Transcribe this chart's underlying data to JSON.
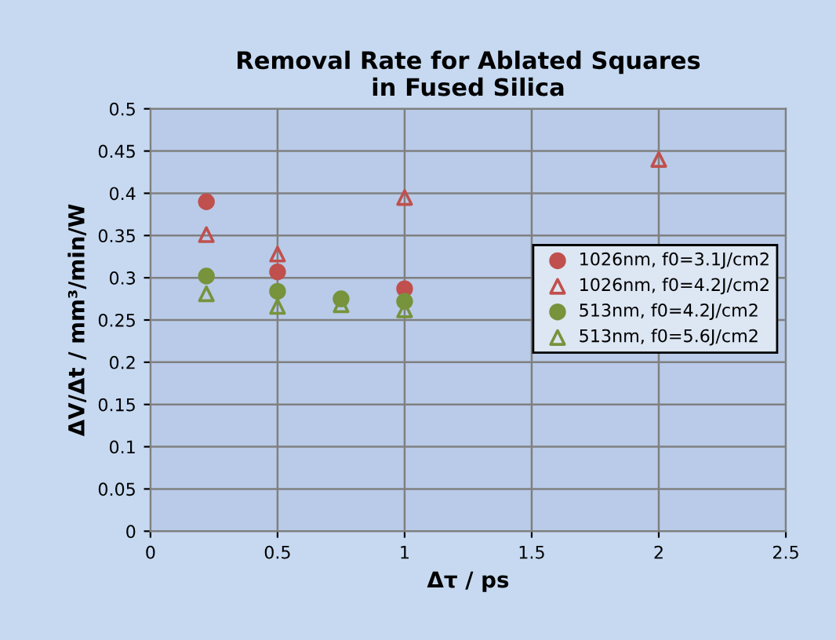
{
  "chart_data": {
    "type": "scatter",
    "title": "Removal Rate for Ablated Squares\nin Fused Silica",
    "xlabel": "Δτ / ps",
    "ylabel": "ΔV/Δt / mm³/min/W",
    "xlim": [
      0,
      2.5
    ],
    "xticks": [
      0,
      0.5,
      1,
      1.5,
      2,
      2.5
    ],
    "ylim": [
      0,
      0.5
    ],
    "yticks": [
      0,
      0.05,
      0.1,
      0.15,
      0.2,
      0.25,
      0.3,
      0.35,
      0.4,
      0.45,
      0.5
    ],
    "grid": true,
    "legend": "right",
    "series": [
      {
        "name": "1026nm, f0=3.1J/cm2",
        "color": "#c0504d",
        "marker": "circle",
        "x": [
          0.22,
          0.5,
          1
        ],
        "values": [
          0.39,
          0.307,
          0.287
        ]
      },
      {
        "name": "1026nm, f0=4.2J/cm2",
        "color": "#c0504d",
        "marker": "triangle",
        "x": [
          0.22,
          0.5,
          1,
          2
        ],
        "values": [
          0.351,
          0.328,
          0.395,
          0.44
        ]
      },
      {
        "name": "513nm, f0=4.2J/cm2",
        "color": "#77933c",
        "marker": "circle",
        "x": [
          0.22,
          0.5,
          0.75,
          1
        ],
        "values": [
          0.302,
          0.284,
          0.275,
          0.272
        ]
      },
      {
        "name": "513nm, f0=5.6J/cm2",
        "color": "#77933c",
        "marker": "triangle",
        "x": [
          0.22,
          0.5,
          0.75,
          1
        ],
        "values": [
          0.281,
          0.266,
          0.268,
          0.262
        ]
      }
    ]
  }
}
